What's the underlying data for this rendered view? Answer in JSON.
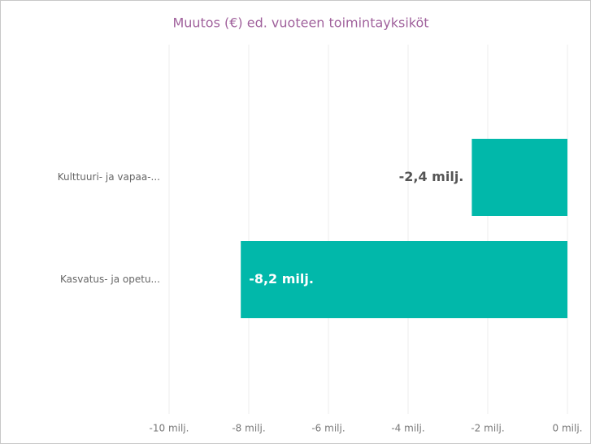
{
  "chart_data": {
    "type": "barh",
    "title": "Muutos (€) ed. vuoteen toimintayksiköt",
    "categories": [
      "Kulttuuri- ja vapaa-...",
      "Kasvatus- ja opetu..."
    ],
    "values": [
      -2.4,
      -8.2
    ],
    "value_labels": [
      "-2,4 milj.",
      "-8,2 milj."
    ],
    "color": "#01b8aa",
    "xlim": [
      -10,
      0
    ],
    "xticks": [
      {
        "value": -10,
        "label": "-10 milj."
      },
      {
        "value": -8,
        "label": "-8 milj."
      },
      {
        "value": -6,
        "label": "-6 milj."
      },
      {
        "value": -4,
        "label": "-4 milj."
      },
      {
        "value": -2,
        "label": "-2 milj."
      },
      {
        "value": 0,
        "label": "0 milj."
      }
    ],
    "grid": true
  }
}
